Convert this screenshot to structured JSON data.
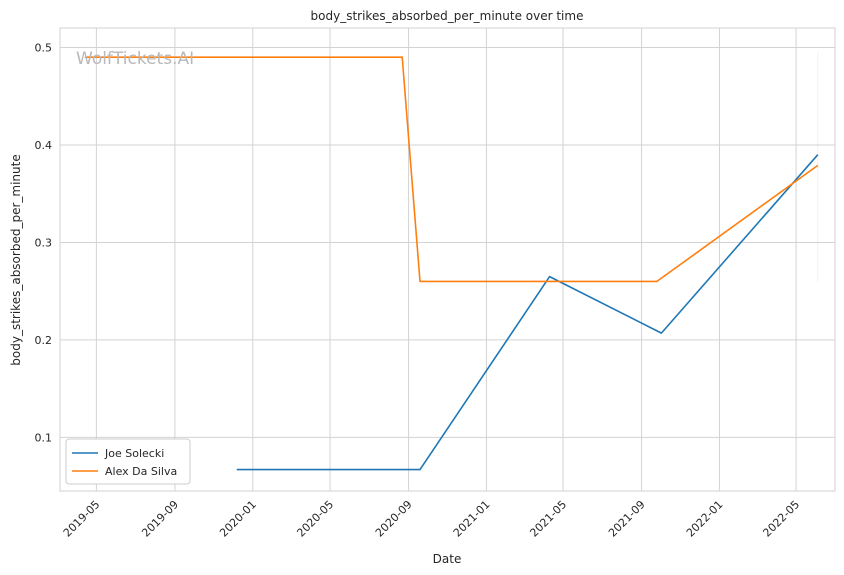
{
  "chart_data": {
    "type": "line",
    "title": "body_strikes_absorbed_per_minute over time",
    "xlabel": "Date",
    "ylabel": "body_strikes_absorbed_per_minute",
    "watermark": "WolfTickets.AI",
    "x_ticks": [
      "2019-05",
      "2019-09",
      "2020-01",
      "2020-05",
      "2020-09",
      "2021-01",
      "2021-05",
      "2021-09",
      "2022-01",
      "2022-05"
    ],
    "y_ticks": [
      "0.1",
      "0.2",
      "0.3",
      "0.4",
      "0.5"
    ],
    "xlim": [
      "2019-03-05",
      "2022-07-01"
    ],
    "ylim": [
      0.045,
      0.52
    ],
    "grid": true,
    "legend_position": "lower-left",
    "series": [
      {
        "name": "Joe Solecki",
        "color": "#1f77b4",
        "points": [
          {
            "x": "2019-12-07",
            "y": 0.067
          },
          {
            "x": "2020-09-19",
            "y": 0.067
          },
          {
            "x": "2021-04-10",
            "y": 0.265
          },
          {
            "x": "2021-10-02",
            "y": 0.207
          },
          {
            "x": "2022-06-04",
            "y": 0.39
          }
        ]
      },
      {
        "name": "Alex Da Silva",
        "color": "#ff7f0e",
        "points": [
          {
            "x": "2019-04-13",
            "y": 0.49
          },
          {
            "x": "2020-08-22",
            "y": 0.49
          },
          {
            "x": "2020-09-19",
            "y": 0.26
          },
          {
            "x": "2021-09-25",
            "y": 0.26
          },
          {
            "x": "2022-06-04",
            "y": 0.379
          }
        ]
      }
    ]
  }
}
